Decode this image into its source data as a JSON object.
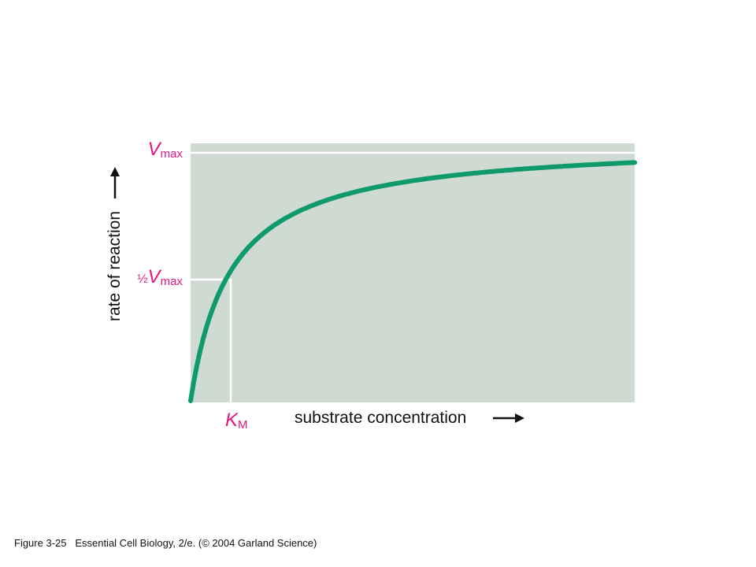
{
  "figure": {
    "vmax": {
      "symbol": "V",
      "subscript": "max"
    },
    "half_vmax": {
      "prefix": "½",
      "symbol": "V",
      "subscript": "max"
    },
    "km": {
      "symbol": "K",
      "subscript": "M"
    },
    "y_axis_label": "rate of reaction",
    "x_axis_label": "substrate concentration"
  },
  "caption": "Figure 3-25   Essential Cell Biology, 2/e. (© 2004 Garland Science)"
}
